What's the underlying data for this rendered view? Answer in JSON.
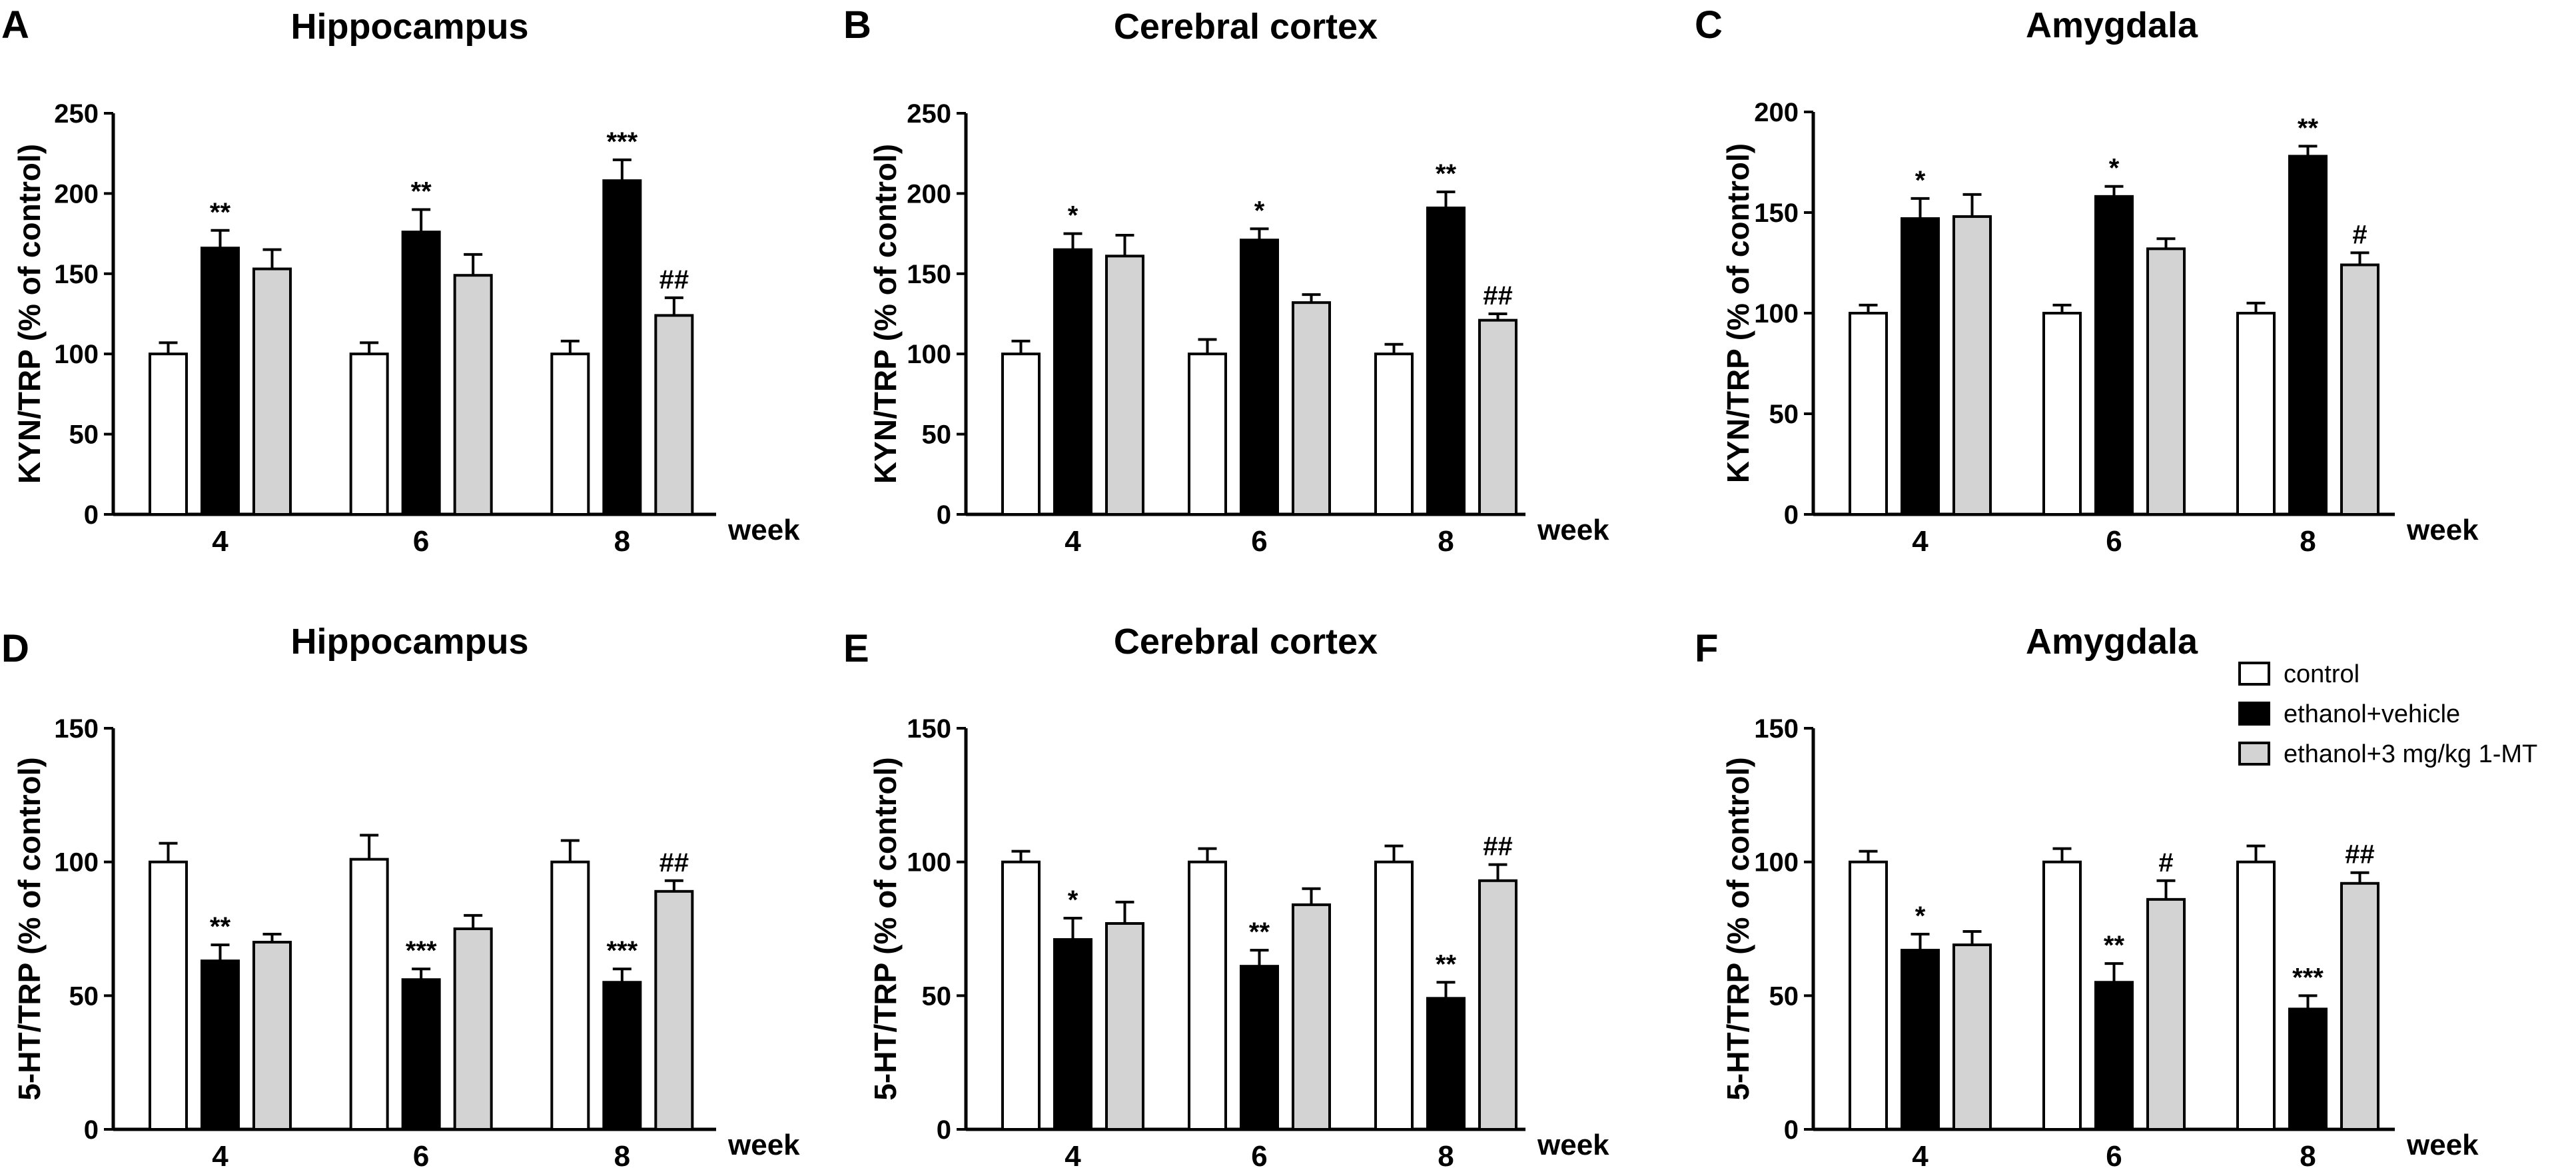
{
  "colors": {
    "control": "#ffffff",
    "ethanol_vehicle": "#000000",
    "ethanol_1mt": "#d3d3d3"
  },
  "legend": {
    "placement": "top-right",
    "entries": [
      "control",
      "ethanol+vehicle",
      "ethanol+3 mg/kg 1-MT"
    ]
  },
  "chart_data": [
    {
      "type": "bar",
      "letter": "A",
      "title": "Hippocampus",
      "ylabel": "KYN/TRP (% of control)",
      "xlabel": "week",
      "ylim": [
        0,
        250
      ],
      "yticks": [
        0,
        50,
        100,
        150,
        200,
        250
      ],
      "categories": [
        "4",
        "6",
        "8"
      ],
      "series": [
        {
          "name": "control",
          "values": [
            100,
            100,
            100
          ],
          "errors": [
            7,
            7,
            8
          ],
          "annotations": [
            "",
            "",
            ""
          ]
        },
        {
          "name": "ethanol+vehicle",
          "values": [
            166,
            176,
            208
          ],
          "errors": [
            11,
            14,
            13
          ],
          "annotations": [
            "**",
            "**",
            "***"
          ]
        },
        {
          "name": "ethanol+3 mg/kg 1-MT",
          "values": [
            153,
            149,
            124
          ],
          "errors": [
            12,
            13,
            11
          ],
          "annotations": [
            "",
            "",
            "##"
          ]
        }
      ]
    },
    {
      "type": "bar",
      "letter": "B",
      "title": "Cerebral cortex",
      "ylabel": "KYN/TRP (% of control)",
      "xlabel": "week",
      "ylim": [
        0,
        250
      ],
      "yticks": [
        0,
        50,
        100,
        150,
        200,
        250
      ],
      "categories": [
        "4",
        "6",
        "8"
      ],
      "series": [
        {
          "name": "control",
          "values": [
            100,
            100,
            100
          ],
          "errors": [
            8,
            9,
            6
          ],
          "annotations": [
            "",
            "",
            ""
          ]
        },
        {
          "name": "ethanol+vehicle",
          "values": [
            165,
            171,
            191
          ],
          "errors": [
            10,
            7,
            10
          ],
          "annotations": [
            "*",
            "*",
            "**"
          ]
        },
        {
          "name": "ethanol+3 mg/kg 1-MT",
          "values": [
            161,
            132,
            121
          ],
          "errors": [
            13,
            5,
            4
          ],
          "annotations": [
            "",
            "",
            "##"
          ]
        }
      ]
    },
    {
      "type": "bar",
      "letter": "C",
      "title": "Amygdala",
      "ylabel": "KYN/TRP (% of control)",
      "xlabel": "week",
      "ylim": [
        0,
        200
      ],
      "yticks": [
        0,
        50,
        100,
        150,
        200
      ],
      "categories": [
        "4",
        "6",
        "8"
      ],
      "series": [
        {
          "name": "control",
          "values": [
            100,
            100,
            100
          ],
          "errors": [
            4,
            4,
            5
          ],
          "annotations": [
            "",
            "",
            ""
          ]
        },
        {
          "name": "ethanol+vehicle",
          "values": [
            147,
            158,
            178
          ],
          "errors": [
            10,
            5,
            5
          ],
          "annotations": [
            "*",
            "*",
            "**"
          ]
        },
        {
          "name": "ethanol+3 mg/kg 1-MT",
          "values": [
            148,
            132,
            124
          ],
          "errors": [
            11,
            5,
            6
          ],
          "annotations": [
            "",
            "",
            "#"
          ]
        }
      ]
    },
    {
      "type": "bar",
      "letter": "D",
      "title": "Hippocampus",
      "ylabel": "5-HT/TRP (% of control)",
      "xlabel": "week",
      "ylim": [
        0,
        150
      ],
      "yticks": [
        0,
        50,
        100,
        150
      ],
      "categories": [
        "4",
        "6",
        "8"
      ],
      "series": [
        {
          "name": "control",
          "values": [
            100,
            101,
            100
          ],
          "errors": [
            7,
            9,
            8
          ],
          "annotations": [
            "",
            "",
            ""
          ]
        },
        {
          "name": "ethanol+vehicle",
          "values": [
            63,
            56,
            55
          ],
          "errors": [
            6,
            4,
            5
          ],
          "annotations": [
            "**",
            "***",
            "***"
          ]
        },
        {
          "name": "ethanol+3 mg/kg 1-MT",
          "values": [
            70,
            75,
            89
          ],
          "errors": [
            3,
            5,
            4
          ],
          "annotations": [
            "",
            "",
            "##"
          ]
        }
      ]
    },
    {
      "type": "bar",
      "letter": "E",
      "title": "Cerebral cortex",
      "ylabel": "5-HT/TRP (% of control)",
      "xlabel": "week",
      "ylim": [
        0,
        150
      ],
      "yticks": [
        0,
        50,
        100,
        150
      ],
      "categories": [
        "4",
        "6",
        "8"
      ],
      "series": [
        {
          "name": "control",
          "values": [
            100,
            100,
            100
          ],
          "errors": [
            4,
            5,
            6
          ],
          "annotations": [
            "",
            "",
            ""
          ]
        },
        {
          "name": "ethanol+vehicle",
          "values": [
            71,
            61,
            49
          ],
          "errors": [
            8,
            6,
            6
          ],
          "annotations": [
            "*",
            "**",
            "**"
          ]
        },
        {
          "name": "ethanol+3 mg/kg 1-MT",
          "values": [
            77,
            84,
            93
          ],
          "errors": [
            8,
            6,
            6
          ],
          "annotations": [
            "",
            "",
            "##"
          ]
        }
      ]
    },
    {
      "type": "bar",
      "letter": "F",
      "title": "Amygdala",
      "ylabel": "5-HT/TRP (% of control)",
      "xlabel": "week",
      "ylim": [
        0,
        150
      ],
      "yticks": [
        0,
        50,
        100,
        150
      ],
      "categories": [
        "4",
        "6",
        "8"
      ],
      "series": [
        {
          "name": "control",
          "values": [
            100,
            100,
            100
          ],
          "errors": [
            4,
            5,
            6
          ],
          "annotations": [
            "",
            "",
            ""
          ]
        },
        {
          "name": "ethanol+vehicle",
          "values": [
            67,
            55,
            45
          ],
          "errors": [
            6,
            7,
            5
          ],
          "annotations": [
            "*",
            "**",
            "***"
          ]
        },
        {
          "name": "ethanol+3 mg/kg 1-MT",
          "values": [
            69,
            86,
            92
          ],
          "errors": [
            5,
            7,
            4
          ],
          "annotations": [
            "",
            "#",
            "##"
          ]
        }
      ]
    }
  ]
}
